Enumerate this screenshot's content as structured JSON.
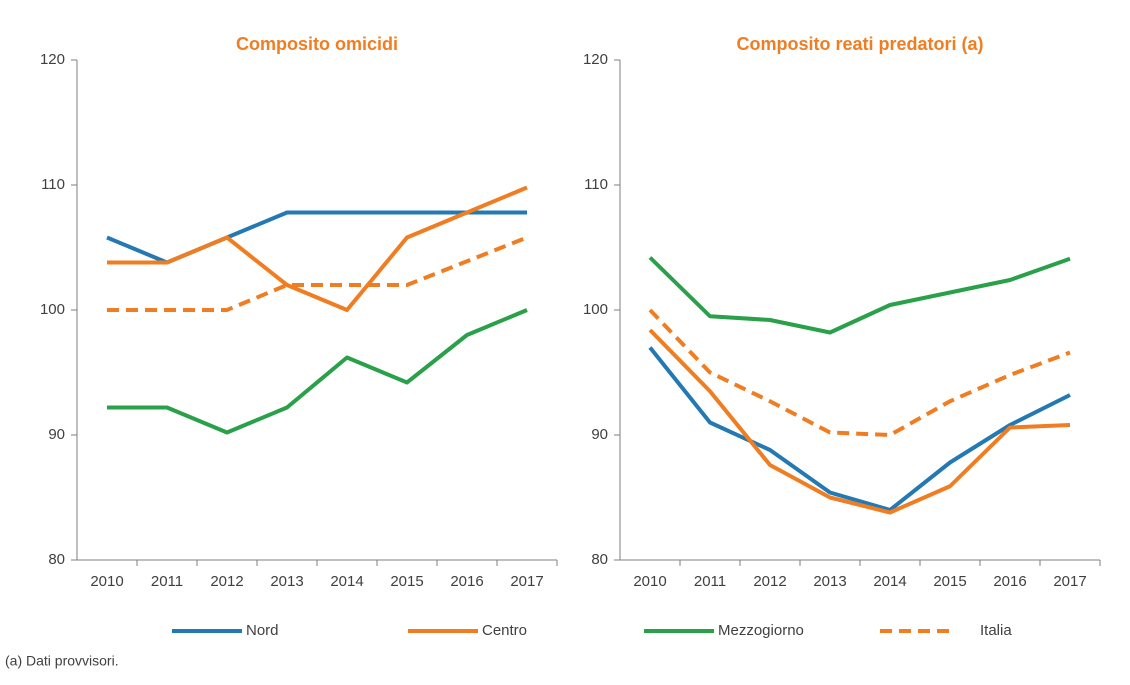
{
  "chart_data": [
    {
      "type": "line",
      "title": "Composito omicidi",
      "categories": [
        "2010",
        "2011",
        "2012",
        "2013",
        "2014",
        "2015",
        "2016",
        "2017"
      ],
      "ylim": [
        80,
        120
      ],
      "yticks": [
        80,
        90,
        100,
        110,
        120
      ],
      "series": [
        {
          "name": "Nord",
          "color": "#2479b3",
          "values": [
            105.8,
            103.8,
            105.8,
            107.8,
            107.8,
            107.8,
            107.8,
            107.8
          ]
        },
        {
          "name": "Centro",
          "color": "#f07d22",
          "values": [
            103.8,
            103.8,
            105.8,
            102,
            100,
            105.8,
            107.8,
            109.8
          ]
        },
        {
          "name": "Mezzogiorno",
          "color": "#2aa04a",
          "values": [
            92.2,
            92.2,
            90.2,
            92.2,
            96.2,
            94.2,
            98,
            100
          ]
        },
        {
          "name": "Italia",
          "color": "#f07d22",
          "dashed": true,
          "values": [
            100,
            100,
            100,
            102,
            102,
            102,
            103.9,
            105.8
          ]
        }
      ]
    },
    {
      "type": "line",
      "title": "Composito reati predatori (a)",
      "categories": [
        "2010",
        "2011",
        "2012",
        "2013",
        "2014",
        "2015",
        "2016",
        "2017"
      ],
      "ylim": [
        80,
        120
      ],
      "yticks": [
        80,
        90,
        100,
        110,
        120
      ],
      "series": [
        {
          "color": "#2479b3",
          "values": [
            97,
            91,
            88.8,
            85.4,
            84,
            87.8,
            90.8,
            93.2
          ]
        },
        {
          "color": "#f07d22",
          "values": [
            98.4,
            93.5,
            87.6,
            85,
            83.8,
            85.9,
            90.6,
            90.8
          ]
        },
        {
          "color": "#2aa04a",
          "values": [
            104.2,
            99.5,
            99.2,
            98.2,
            100.4,
            101.4,
            102.4,
            104.1
          ]
        },
        {
          "color": "#f07d22",
          "dashed": true,
          "values": [
            100,
            95,
            92.7,
            90.2,
            90,
            92.7,
            94.8,
            96.6
          ]
        }
      ]
    }
  ],
  "note": "(a) Dati provvisori."
}
